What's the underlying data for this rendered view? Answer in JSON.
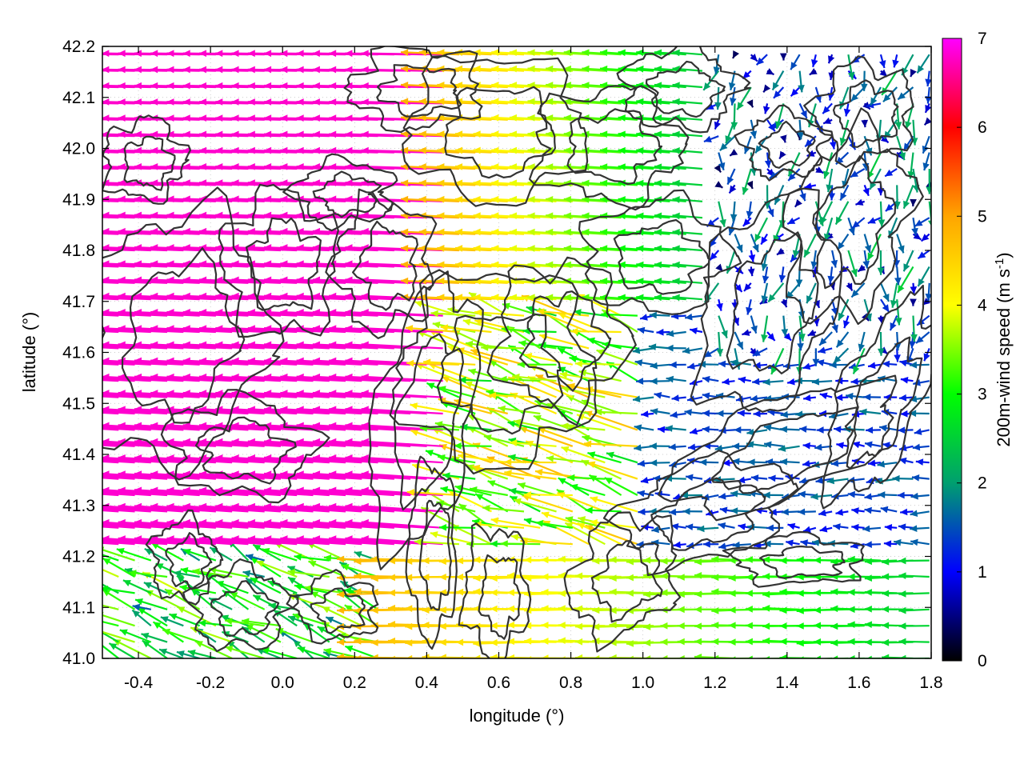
{
  "chart_data": {
    "type": "vector-field",
    "xlabel": "longitude (°)",
    "ylabel": "latitude (°)",
    "xlim": [
      -0.5,
      1.8
    ],
    "ylim": [
      41.0,
      42.2
    ],
    "x_ticks": [
      -0.4,
      -0.2,
      0.0,
      0.2,
      0.4,
      0.6,
      0.8,
      1.0,
      1.2,
      1.4,
      1.6,
      1.8
    ],
    "x_tick_labels": [
      "-0.4",
      "-0.2",
      "0.0",
      "0.2",
      "0.4",
      "0.6",
      "0.8",
      "1.0",
      "1.2",
      "1.4",
      "1.6",
      "1.8"
    ],
    "y_ticks": [
      41.0,
      41.1,
      41.2,
      41.3,
      41.4,
      41.5,
      41.6,
      41.7,
      41.8,
      41.9,
      42.0,
      42.1,
      42.2
    ],
    "y_tick_labels": [
      "41.0",
      "41.1",
      "41.2",
      "41.3",
      "41.4",
      "41.5",
      "41.6",
      "41.7",
      "41.8",
      "41.9",
      "42.0",
      "42.1",
      "42.2"
    ],
    "colorbar": {
      "label_main": "200m-wind speed (m s",
      "label_sup": "-1",
      "label_close": ")",
      "range": [
        0,
        7
      ],
      "ticks": [
        0,
        1,
        2,
        3,
        4,
        5,
        6,
        7
      ],
      "tick_labels": [
        "0",
        "1",
        "2",
        "3",
        "4",
        "5",
        "6",
        "7"
      ],
      "palette": [
        "#000000",
        "#0000ff",
        "#009f6f",
        "#00ff00",
        "#ffff00",
        "#ffa500",
        "#ff0000",
        "#ff00ff"
      ]
    },
    "grid": true,
    "vector_field": {
      "description_region": [
        {
          "x_range": [
            -0.5,
            0.45
          ],
          "y_range": [
            41.2,
            42.2
          ],
          "u": -6.8,
          "v": 0.35,
          "speed": 7.0
        },
        {
          "x_range": [
            0.45,
            1.2
          ],
          "y_range": [
            41.7,
            42.2
          ],
          "u": -4.5,
          "v": 0.1,
          "speed": 4.5
        },
        {
          "x_range": [
            1.2,
            1.8
          ],
          "y_range": [
            41.6,
            42.2
          ],
          "u": -0.5,
          "v": -1.5,
          "speed": 1.5
        },
        {
          "x_range": [
            1.0,
            1.8
          ],
          "y_range": [
            41.1,
            41.6
          ],
          "u": -1.5,
          "v": 0.0,
          "speed": 1.5
        },
        {
          "x_range": [
            -0.5,
            0.3
          ],
          "y_range": [
            41.0,
            41.2
          ],
          "u": -2.5,
          "v": 1.0,
          "speed": 3.0
        },
        {
          "x_range": [
            0.3,
            1.8
          ],
          "y_range": [
            41.0,
            41.2
          ],
          "u": -4.5,
          "v": 0.0,
          "speed": 4.5
        }
      ]
    },
    "contours": "terrain elevation isolines"
  }
}
